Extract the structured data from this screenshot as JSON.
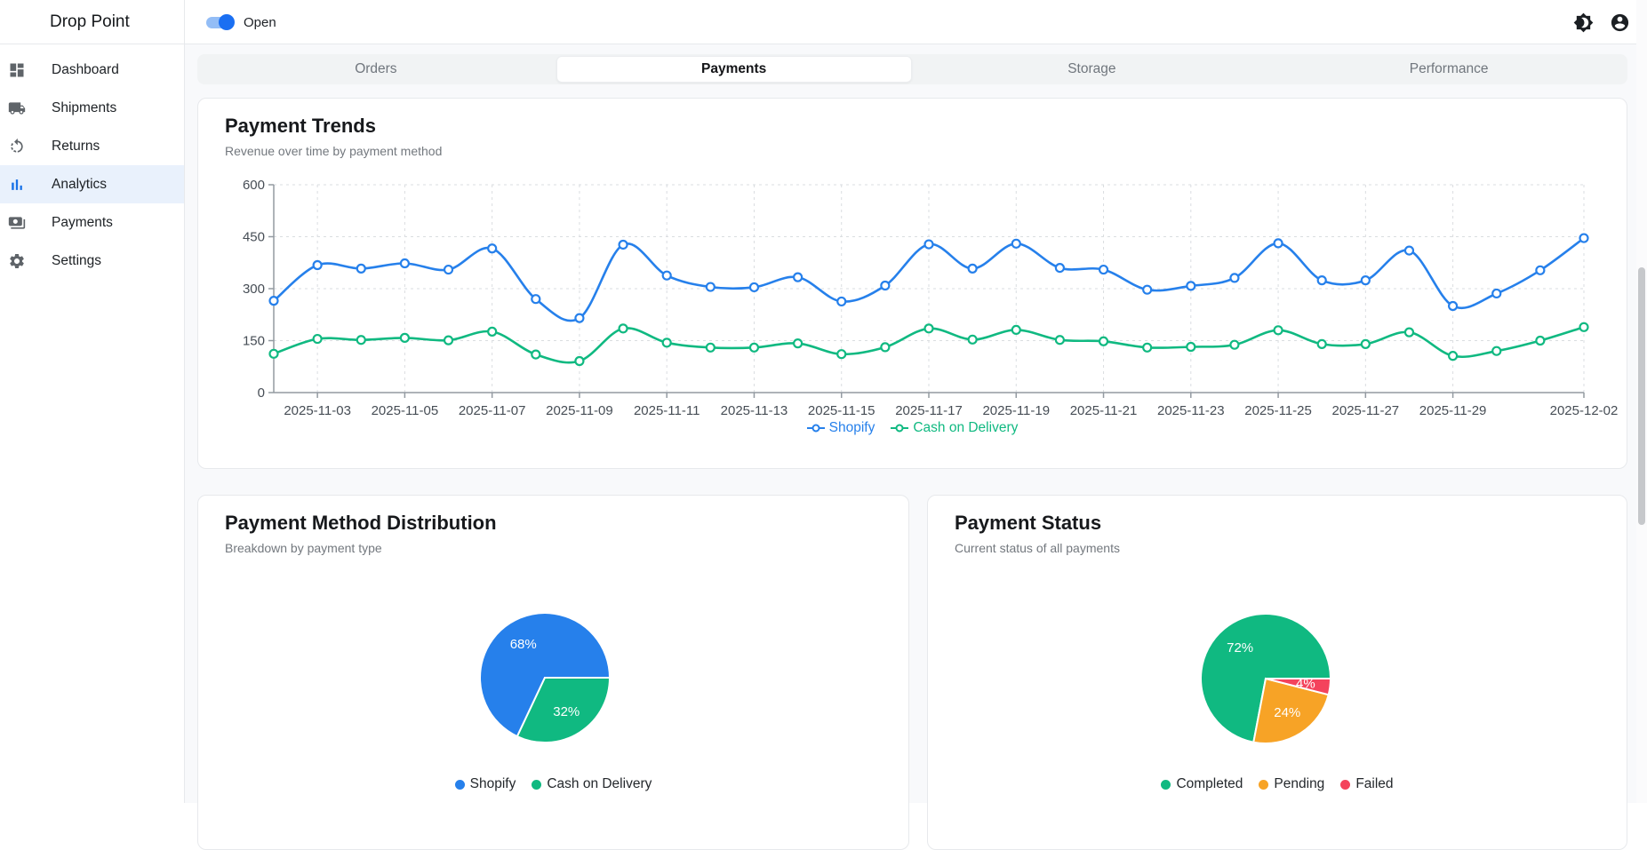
{
  "app": {
    "title": "Drop Point"
  },
  "header": {
    "toggle_label": "Open",
    "toggle_state": "on",
    "icons": [
      "theme-toggle-icon",
      "account-icon"
    ]
  },
  "sidebar": {
    "items": [
      {
        "label": "Dashboard",
        "icon": "dashboard-icon",
        "active": false
      },
      {
        "label": "Shipments",
        "icon": "truck-icon",
        "active": false
      },
      {
        "label": "Returns",
        "icon": "returns-icon",
        "active": false
      },
      {
        "label": "Analytics",
        "icon": "analytics-icon",
        "active": true
      },
      {
        "label": "Payments",
        "icon": "payments-icon",
        "active": false
      },
      {
        "label": "Settings",
        "icon": "settings-icon",
        "active": false
      }
    ]
  },
  "tabs": {
    "items": [
      "Orders",
      "Payments",
      "Storage",
      "Performance"
    ],
    "active": "Payments"
  },
  "trends_card": {
    "title": "Payment Trends",
    "subtitle": "Revenue over time by payment method"
  },
  "distribution_card": {
    "title": "Payment Method Distribution",
    "subtitle": "Breakdown by payment type"
  },
  "status_card": {
    "title": "Payment Status",
    "subtitle": "Current status of all payments"
  },
  "colors": {
    "blue": "#2680eb",
    "green": "#10b981",
    "orange": "#f7a326",
    "red": "#f4435c",
    "axis": "#939aa1",
    "grid": "#dadde0",
    "tick_text": "#464d55"
  },
  "chart_data": [
    {
      "type": "line",
      "title": "Payment Trends",
      "x": [
        "2025-11-02",
        "2025-11-03",
        "2025-11-04",
        "2025-11-05",
        "2025-11-06",
        "2025-11-07",
        "2025-11-08",
        "2025-11-09",
        "2025-11-10",
        "2025-11-11",
        "2025-11-12",
        "2025-11-13",
        "2025-11-14",
        "2025-11-15",
        "2025-11-16",
        "2025-11-17",
        "2025-11-18",
        "2025-11-19",
        "2025-11-20",
        "2025-11-21",
        "2025-11-22",
        "2025-11-23",
        "2025-11-24",
        "2025-11-25",
        "2025-11-26",
        "2025-11-27",
        "2025-11-28",
        "2025-11-29",
        "2025-11-30",
        "2025-12-01",
        "2025-12-02"
      ],
      "x_tick_labels": [
        "2025-11-03",
        "2025-11-05",
        "2025-11-07",
        "2025-11-09",
        "2025-11-11",
        "2025-11-13",
        "2025-11-15",
        "2025-11-17",
        "2025-11-19",
        "2025-11-21",
        "2025-11-23",
        "2025-11-25",
        "2025-11-27",
        "2025-11-29",
        "2025-12-02"
      ],
      "series": [
        {
          "name": "Shopify",
          "color": "#2680eb",
          "values": [
            265,
            368,
            358,
            373,
            355,
            416,
            270,
            215,
            427,
            338,
            305,
            304,
            333,
            263,
            309,
            428,
            358,
            430,
            360,
            355,
            297,
            308,
            331,
            431,
            324,
            324,
            410,
            250,
            286,
            353,
            446
          ]
        },
        {
          "name": "Cash on Delivery",
          "color": "#10b981",
          "values": [
            112,
            155,
            152,
            158,
            151,
            176,
            110,
            91,
            185,
            144,
            130,
            130,
            142,
            111,
            131,
            185,
            153,
            181,
            152,
            148,
            130,
            132,
            138,
            180,
            140,
            140,
            174,
            106,
            120,
            150,
            189
          ]
        }
      ],
      "ylim": [
        0,
        600
      ],
      "yticks": [
        0,
        150,
        300,
        450,
        600
      ],
      "grid": true,
      "legend_position": "bottom"
    },
    {
      "type": "pie",
      "title": "Payment Method Distribution",
      "labels": [
        "Shopify",
        "Cash on Delivery"
      ],
      "values": [
        68,
        32
      ],
      "value_labels": [
        "68%",
        "32%"
      ],
      "colors": [
        "#2680eb",
        "#10b981"
      ],
      "legend_position": "bottom"
    },
    {
      "type": "pie",
      "title": "Payment Status",
      "labels": [
        "Completed",
        "Pending",
        "Failed"
      ],
      "values": [
        72,
        24,
        4
      ],
      "value_labels": [
        "72%",
        "24%",
        "4%"
      ],
      "colors": [
        "#10b981",
        "#f7a326",
        "#f4435c"
      ],
      "legend_position": "bottom"
    }
  ]
}
